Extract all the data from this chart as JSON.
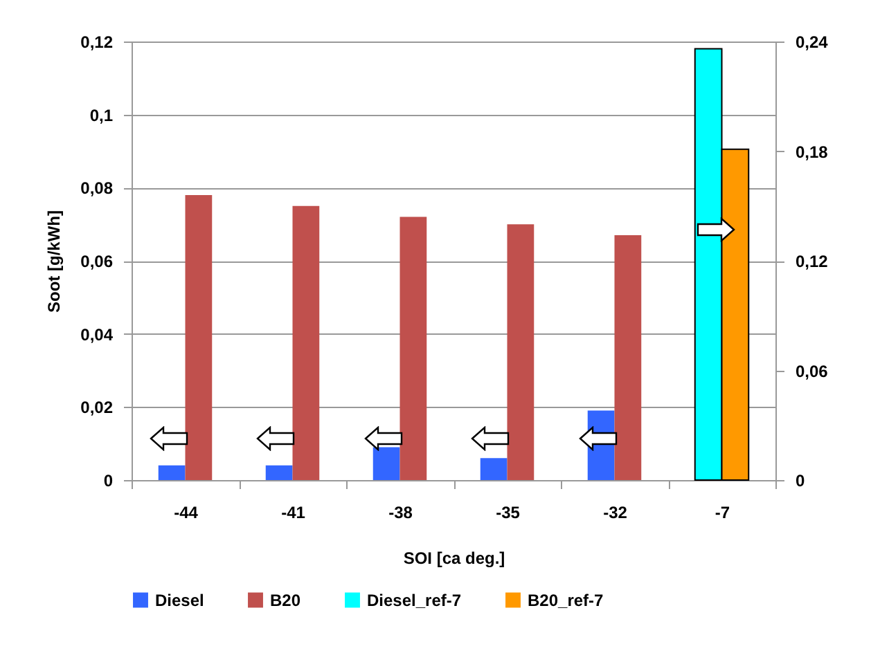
{
  "chart_data": {
    "type": "bar",
    "xlabel": "SOI [ca deg.]",
    "ylabel": "Soot [g/kWh]",
    "categories": [
      "-44",
      "-41",
      "-38",
      "-35",
      "-32",
      "-7"
    ],
    "series": [
      {
        "name": "Diesel",
        "color": "#3366ff",
        "values": [
          0.004,
          0.004,
          0.009,
          0.006,
          0.019,
          null
        ]
      },
      {
        "name": "B20",
        "color": "#c0504d",
        "values": [
          0.078,
          0.075,
          0.072,
          0.07,
          0.067,
          null
        ]
      },
      {
        "name": "Diesel_ref-7",
        "color": "#00ffff",
        "axis": "y2",
        "values": [
          null,
          null,
          null,
          null,
          null,
          0.236
        ]
      },
      {
        "name": "B20_ref-7",
        "color": "#ff9900",
        "axis": "y2",
        "values": [
          null,
          null,
          null,
          null,
          null,
          0.181
        ]
      }
    ],
    "ylim": [
      0,
      0.12
    ],
    "yticks": [
      0,
      {
        "value": 0.02,
        "label": "0,02"
      },
      {
        "value": 0.04,
        "label": "0,04"
      },
      {
        "value": 0.06,
        "label": "0,06"
      },
      {
        "value": 0.08,
        "label": "0,08"
      },
      {
        "value": 0.1,
        "label": "0,1"
      },
      {
        "value": 0.12,
        "label": "0,12"
      }
    ],
    "y2lim": [
      0,
      0.24
    ],
    "y2ticks": [
      0,
      {
        "value": 0.06,
        "label": "0,06"
      },
      {
        "value": 0.12,
        "label": "0,12"
      },
      {
        "value": 0.18,
        "label": "0,18"
      },
      {
        "value": 0.24,
        "label": "0,24"
      }
    ],
    "grid": "y",
    "legend": "bottom"
  }
}
